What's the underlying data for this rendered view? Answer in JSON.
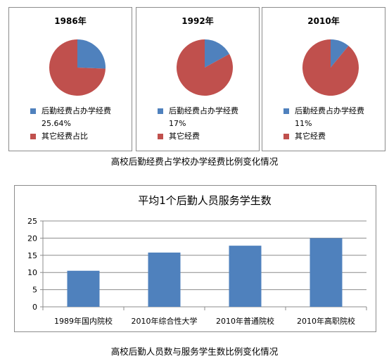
{
  "chart_data": [
    {
      "type": "pie",
      "title": "1986年",
      "slices": [
        {
          "label": "后勤经费占办学经费",
          "value": 25.64,
          "value_label": "25.64%",
          "color": "#4f81bd"
        },
        {
          "label": "其它经费占比",
          "value": 74.36,
          "color": "#c0504d"
        }
      ]
    },
    {
      "type": "pie",
      "title": "1992年",
      "slices": [
        {
          "label": "后勤经费占办学经费",
          "value": 17,
          "value_label": "17%",
          "color": "#4f81bd"
        },
        {
          "label": "其它经费",
          "value": 83,
          "color": "#c0504d"
        }
      ]
    },
    {
      "type": "pie",
      "title": "2010年",
      "slices": [
        {
          "label": "后勤经费占办学经费",
          "value": 11,
          "value_label": "11%",
          "color": "#4f81bd"
        },
        {
          "label": "其它经费",
          "value": 89,
          "color": "#c0504d"
        }
      ]
    },
    {
      "type": "bar",
      "title": "平均1个后勤人员服务学生数",
      "categories": [
        "1989年国内院校",
        "2010年综合性大学",
        "2010年普通院校",
        "2010年高职院校"
      ],
      "values": [
        10.5,
        15.8,
        17.8,
        20
      ],
      "ylim": [
        0,
        25
      ],
      "yticks": [
        "0",
        "5",
        "10",
        "15",
        "20",
        "25"
      ],
      "grid": true,
      "bar_color": "#4f81bd"
    }
  ],
  "captions": {
    "pie_group": "高校后勤经费占学校办学经费比例变化情况",
    "bar": "高校后勤人员数与服务学生数比例变化情况"
  }
}
